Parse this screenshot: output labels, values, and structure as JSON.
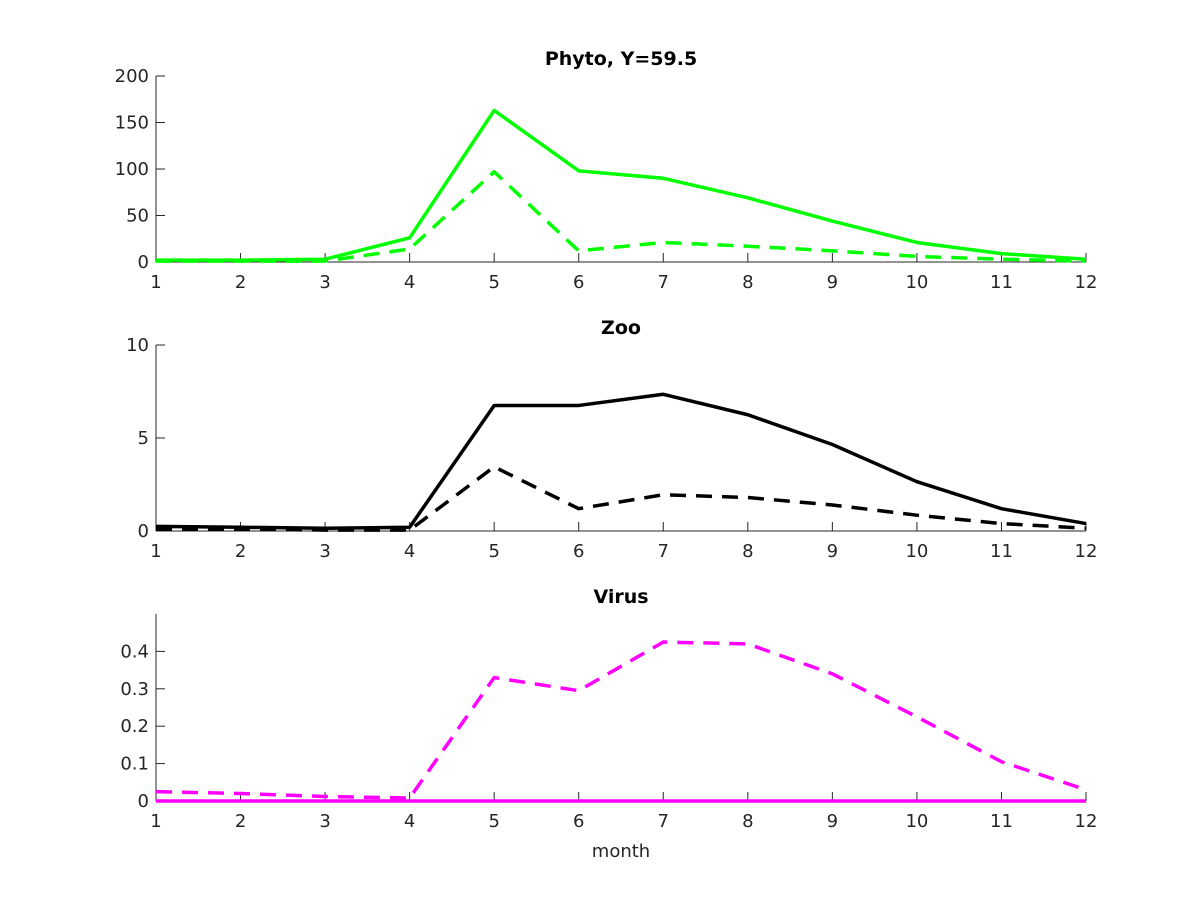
{
  "chart_data": [
    {
      "type": "line",
      "title": "Phyto, Y=59.5",
      "xlabel": "",
      "ylabel": "",
      "x": [
        1,
        2,
        3,
        4,
        5,
        6,
        7,
        8,
        9,
        10,
        11,
        12
      ],
      "xlim": [
        1,
        12
      ],
      "ylim": [
        0,
        200
      ],
      "yticks": [
        0,
        50,
        100,
        150,
        200
      ],
      "grid": false,
      "series": [
        {
          "style": "solid",
          "color": "#00ff00",
          "values": [
            2,
            2,
            3,
            26,
            163,
            98,
            90,
            69,
            44,
            21,
            9,
            3
          ]
        },
        {
          "style": "dashed",
          "color": "#00ff00",
          "values": [
            1,
            1,
            1,
            14,
            97,
            12,
            21,
            17,
            12,
            6,
            3,
            1
          ]
        }
      ]
    },
    {
      "type": "line",
      "title": "Zoo",
      "xlabel": "",
      "ylabel": "",
      "x": [
        1,
        2,
        3,
        4,
        5,
        6,
        7,
        8,
        9,
        10,
        11,
        12
      ],
      "xlim": [
        1,
        12
      ],
      "ylim": [
        0,
        10
      ],
      "yticks": [
        0,
        5,
        10
      ],
      "grid": false,
      "series": [
        {
          "style": "solid",
          "color": "#000000",
          "values": [
            0.25,
            0.2,
            0.15,
            0.2,
            6.75,
            6.75,
            7.35,
            6.25,
            4.65,
            2.65,
            1.2,
            0.4
          ]
        },
        {
          "style": "dashed",
          "color": "#000000",
          "values": [
            0.1,
            0.1,
            0.05,
            0.05,
            3.45,
            1.2,
            1.95,
            1.8,
            1.4,
            0.85,
            0.4,
            0.15
          ]
        }
      ]
    },
    {
      "type": "line",
      "title": "Virus",
      "xlabel": "month",
      "ylabel": "",
      "x": [
        1,
        2,
        3,
        4,
        5,
        6,
        7,
        8,
        9,
        10,
        11,
        12
      ],
      "xlim": [
        1,
        12
      ],
      "ylim": [
        0,
        0.5
      ],
      "yticks": [
        0,
        0.1,
        0.2,
        0.3,
        0.4
      ],
      "grid": false,
      "series": [
        {
          "style": "solid",
          "color": "#ff00ff",
          "values": [
            0,
            0,
            0,
            0,
            0,
            0,
            0,
            0,
            0,
            0,
            0,
            0
          ]
        },
        {
          "style": "dashed",
          "color": "#ff00ff",
          "values": [
            0.025,
            0.02,
            0.012,
            0.008,
            0.33,
            0.295,
            0.425,
            0.42,
            0.34,
            0.225,
            0.105,
            0.03
          ]
        }
      ]
    }
  ]
}
